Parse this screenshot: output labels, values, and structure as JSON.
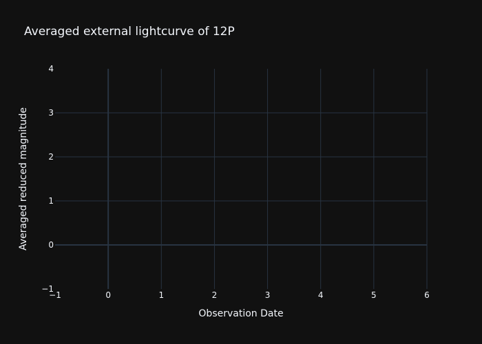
{
  "chart_data": {
    "type": "scatter",
    "title": "Averaged external lightcurve of 12P",
    "xlabel": "Observation Date",
    "ylabel": "Averaged reduced magnitude",
    "xlim": [
      -1,
      6
    ],
    "ylim": [
      -1,
      4
    ],
    "x_ticks": [
      "−1",
      "0",
      "1",
      "2",
      "3",
      "4",
      "5",
      "6"
    ],
    "y_ticks": [
      "−1",
      "0",
      "1",
      "2",
      "3",
      "4"
    ],
    "x_tick_values": [
      -1,
      0,
      1,
      2,
      3,
      4,
      5,
      6
    ],
    "y_tick_values": [
      -1,
      0,
      1,
      2,
      3,
      4
    ],
    "series": [],
    "grid": true,
    "legend": "none",
    "colors": {
      "background": "#111111",
      "grid": "#283442",
      "zeroline": "#283442",
      "text": "#f2f5fa"
    }
  }
}
